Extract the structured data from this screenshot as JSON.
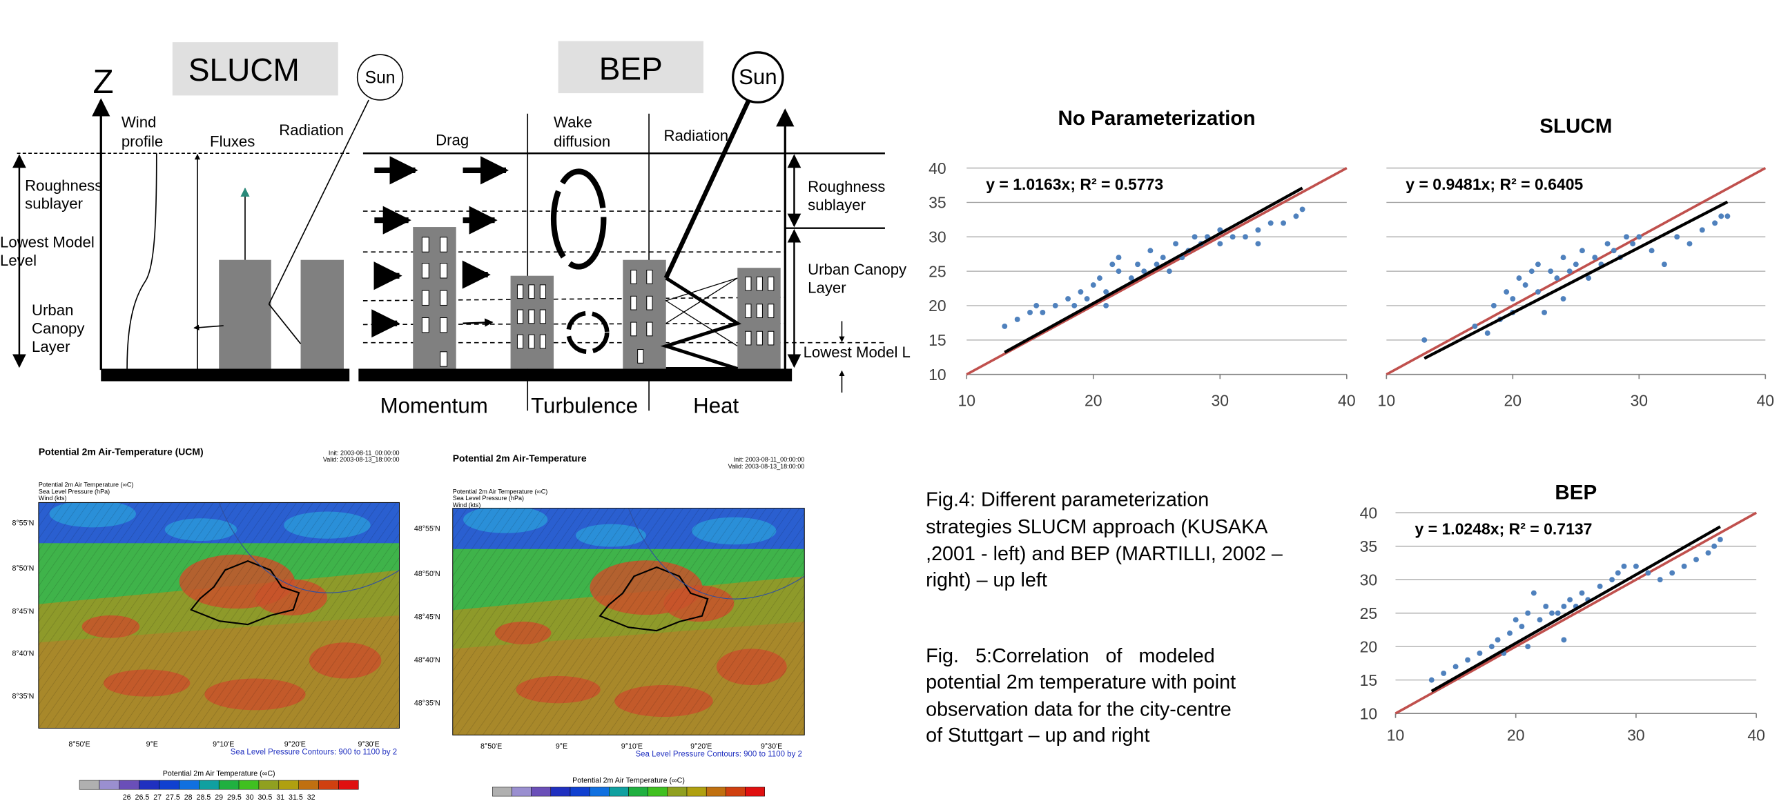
{
  "diagram": {
    "slucm_label": "SLUCM",
    "bep_label": "BEP",
    "z_label": "Z",
    "sun_left": "Sun",
    "sun_right": "Sun",
    "left_labels": [
      [
        "Roughness",
        "sublayer"
      ],
      [
        "Lowest Model",
        "Level"
      ],
      [
        "Urban",
        "Canopy",
        "Layer"
      ]
    ],
    "slucm_headers": [
      [
        "Wind",
        "profile"
      ],
      [
        "Fluxes"
      ],
      [
        "Radiation"
      ]
    ],
    "bep_headers": [
      [
        "Drag"
      ],
      [
        "Wake",
        "diffusion"
      ],
      [
        "Radiation"
      ]
    ],
    "right_labels": [
      [
        "Roughness",
        "sublayer"
      ],
      [
        "Urban Canopy",
        "Layer"
      ],
      [
        "Lowest Model L"
      ]
    ],
    "bottom_labels": [
      "Momentum",
      "Turbulence",
      "Heat"
    ]
  },
  "maps": [
    {
      "title": "Potential 2m Air-Temperature (UCM)",
      "run_info": [
        "Init: 2003-08-11_00:00:00",
        "Valid: 2003-08-13_18:00:00"
      ],
      "fields": [
        "Potential 2m Air Temperature  (∞C)",
        "Sea Level Pressure  (hPa)",
        "Wind  (kts)"
      ],
      "lat_labels": [
        "8°55'N",
        "8°50'N",
        "8°45'N",
        "8°40'N",
        "8°35'N"
      ],
      "lon_labels": [
        "8°50'E",
        "9°E",
        "9°10'E",
        "9°20'E",
        "9°30'E"
      ],
      "contours": "Sea Level Pressure Contours: 900 to 1100 by 2",
      "colorbar_title": "Potential 2m Air Temperature  (∞C)",
      "colorbar_labels": "26  26.5  27  27.5  28  28.5  29  29.5  30  30.5  31  31.5  32"
    },
    {
      "title": "Potential 2m Air-Temperature",
      "run_info": [
        "Init: 2003-08-11_00:00:00",
        "Valid: 2003-08-13_18:00:00"
      ],
      "fields": [
        "Potential 2m Air Temperature  (∞C)",
        "Sea Level Pressure  (hPa)",
        "Wind  (kts)"
      ],
      "lat_labels": [
        "48°55'N",
        "48°50'N",
        "48°45'N",
        "48°40'N",
        "48°35'N"
      ],
      "lon_labels": [
        "8°50'E",
        "9°E",
        "9°10'E",
        "9°20'E",
        "9°30'E"
      ],
      "contours": "Sea Level Pressure Contours: 900 to 1100 by 2",
      "colorbar_title": "Potential 2m Air Temperature  (∞C)"
    }
  ],
  "captions": {
    "fig4": [
      "Fig.4: Different parameterization",
      "strategies SLUCM approach (KUSAKA",
      ",2001 - left) and BEP (MARTILLI, 2002 –",
      "right) – up left"
    ],
    "fig5": [
      "Fig.   5:Correlation   of   modeled",
      "potential 2m temperature with point",
      "observation data for the city-centre",
      "of Stuttgart – up and right"
    ]
  },
  "chart_data": [
    {
      "type": "scatter",
      "title": "No Parameterization",
      "annotation": "y = 1.0163x; R² = 0.5773",
      "trendline": {
        "slope": 1.0163
      },
      "color": "#4f81bd",
      "trend_color": "#000000",
      "identity_color": "#c0504d",
      "x": [
        13,
        14,
        15,
        15.5,
        16,
        17,
        18,
        18.5,
        19,
        19.5,
        20,
        20.5,
        21,
        21.5,
        22,
        22,
        23,
        23.5,
        24,
        24.5,
        25,
        25.5,
        26,
        26.5,
        27,
        27.5,
        28,
        28.5,
        29,
        30,
        31,
        32,
        33,
        34,
        35,
        36,
        36.5,
        33,
        30,
        21
      ],
      "values": [
        17,
        18,
        19,
        20,
        19,
        20,
        21,
        20,
        22,
        21,
        23,
        24,
        22,
        26,
        25,
        27,
        24,
        26,
        25,
        28,
        26,
        27,
        25,
        29,
        27,
        28,
        30,
        29,
        30,
        31,
        30,
        30,
        31,
        32,
        32,
        33,
        34,
        29,
        29,
        20
      ],
      "xlim": [
        10,
        40
      ],
      "ylim": [
        10,
        40
      ],
      "xticks": [
        10,
        20,
        30,
        40
      ],
      "yticks": [
        10,
        15,
        20,
        25,
        30,
        35,
        40
      ],
      "ytick_labels": true,
      "grid": true
    },
    {
      "type": "scatter",
      "title": "SLUCM",
      "annotation": "y = 0.9481x; R² = 0.6405",
      "trendline": {
        "slope": 0.9481
      },
      "color": "#4f81bd",
      "trend_color": "#000000",
      "identity_color": "#c0504d",
      "x": [
        17,
        18,
        18.5,
        19,
        19.5,
        20,
        20.5,
        21,
        21.5,
        22,
        22,
        23,
        23.5,
        24,
        24.5,
        25,
        25.5,
        26,
        26.5,
        27,
        27.5,
        28,
        28.5,
        29,
        29.5,
        30,
        31,
        32,
        33,
        34,
        35,
        36,
        36.5,
        20,
        22.5,
        24,
        13,
        37
      ],
      "values": [
        17,
        16,
        20,
        18,
        22,
        21,
        24,
        23,
        25,
        22,
        26,
        25,
        24,
        27,
        25,
        26,
        28,
        24,
        27,
        26,
        29,
        28,
        27,
        30,
        29,
        30,
        28,
        26,
        30,
        29,
        31,
        32,
        33,
        19,
        19,
        21,
        15,
        33
      ],
      "xlim": [
        10,
        40
      ],
      "ylim": [
        10,
        40
      ],
      "xticks": [
        10,
        20,
        30,
        40
      ],
      "yticks": [
        10,
        15,
        20,
        25,
        30,
        35,
        40
      ],
      "ytick_labels": false,
      "grid": true
    },
    {
      "type": "scatter",
      "title": "BEP",
      "annotation": "y = 1.0248x; R² = 0.7137",
      "trendline": {
        "slope": 1.0248
      },
      "color": "#4f81bd",
      "trend_color": "#000000",
      "identity_color": "#c0504d",
      "x": [
        13,
        14,
        15,
        16,
        17,
        18,
        18.5,
        19,
        19.5,
        20,
        20.5,
        21,
        21.5,
        22,
        22.5,
        23,
        23.5,
        24,
        24.5,
        25,
        25.5,
        26,
        27,
        28,
        28.5,
        29,
        30,
        31,
        32,
        33,
        34,
        35,
        36,
        36.5,
        37,
        21,
        24
      ],
      "values": [
        15,
        16,
        17,
        18,
        19,
        20,
        21,
        19,
        22,
        24,
        23,
        25,
        28,
        24,
        26,
        25,
        25,
        26,
        27,
        26,
        28,
        27,
        29,
        30,
        31,
        32,
        32,
        31,
        30,
        31,
        32,
        33,
        34,
        35,
        36,
        20,
        21
      ],
      "xlim": [
        10,
        40
      ],
      "ylim": [
        10,
        40
      ],
      "xticks": [
        10,
        20,
        30,
        40
      ],
      "yticks": [
        10,
        15,
        20,
        25,
        30,
        35,
        40
      ],
      "ytick_labels": true,
      "grid": true
    }
  ]
}
